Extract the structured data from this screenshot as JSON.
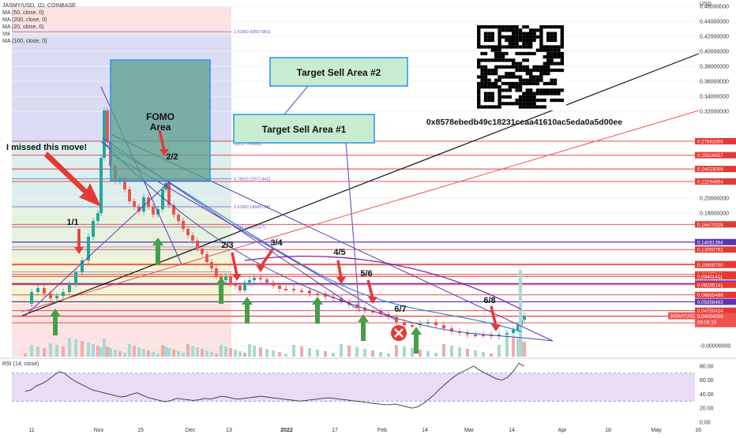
{
  "chart_data": {
    "type": "candlestick",
    "symbol_line": "JASMY/USD, 1D, COINBASE",
    "indicators": [
      "MA (50, close, 0)",
      "MA (200, close, 0)",
      "MA (20, close, 0)",
      "Vol",
      "MA (100, close, 0)"
    ],
    "currency": "USD",
    "ylim": [
      -0.005,
      0.46
    ],
    "yticks": [
      {
        "v": 0.46,
        "label": "0.46000000"
      },
      {
        "v": 0.44,
        "label": "0.44000000"
      },
      {
        "v": 0.42,
        "label": "0.42000000"
      },
      {
        "v": 0.4,
        "label": "0.40000000"
      },
      {
        "v": 0.38,
        "label": "0.38000000"
      },
      {
        "v": 0.36,
        "label": "0.36000000"
      },
      {
        "v": 0.34,
        "label": "0.34000000"
      },
      {
        "v": 0.32,
        "label": "0.32000000"
      },
      {
        "v": 0.2,
        "label": "0.20000000"
      },
      {
        "v": 0.18,
        "label": "0.18000000"
      },
      {
        "v": 0.0,
        "label": "-0.00000000"
      }
    ],
    "price_tags": [
      {
        "v": 0.27863356,
        "label": "0.27863356",
        "color": "#e53935"
      },
      {
        "v": 0.25926657,
        "label": "0.25926657",
        "color": "#e53935"
      },
      {
        "v": 0.24023009,
        "label": "0.24023009",
        "color": "#e53935"
      },
      {
        "v": 0.22294854,
        "label": "0.22294854",
        "color": "#e53935"
      },
      {
        "v": 0.16470328,
        "label": "0.16470328",
        "color": "#e53935"
      },
      {
        "v": 0.14061394,
        "label": "0.14061394",
        "color": "#5e35b1"
      },
      {
        "v": 0.13050792,
        "label": "0.13050792",
        "color": "#e53935"
      },
      {
        "v": 0.11070779,
        "label": "0.11070779",
        "color": "#e53935"
      },
      {
        "v": 0.109587,
        "label": "0.10958700",
        "color": "#e53935"
      },
      {
        "v": 0.09677942,
        "label": "0.09677942",
        "color": "#e53935"
      },
      {
        "v": 0.09401411,
        "label": "0.09401411",
        "color": "#e53935"
      },
      {
        "v": 0.08427914,
        "label": "0.08427914",
        "color": "#5e35b1"
      },
      {
        "v": 0.08265141,
        "label": "0.08265141",
        "color": "#e53935"
      },
      {
        "v": 0.06885498,
        "label": "0.06885498",
        "color": "#e53935"
      },
      {
        "v": 0.05956483,
        "label": "0.05956483",
        "color": "#5e35b1"
      },
      {
        "v": 0.04750424,
        "label": "0.04750424",
        "color": "#e53935"
      },
      {
        "v": 0.04004,
        "label": "0.04004000",
        "color": "#e53935"
      },
      {
        "v": 0.03998118,
        "label": "0.03998118",
        "color": "#e53935"
      },
      {
        "v": 0.031,
        "label": "0.03100000",
        "color": "#e53935"
      }
    ],
    "current": {
      "symbol": "JASMYUSD",
      "price": "0.04004000",
      "countdown": "09:03:19"
    },
    "fib_levels": [
      {
        "v": 0.42607981,
        "label": "1.618(0.42607981)"
      },
      {
        "v": 0.22671442,
        "label": "0.786(0.22671442)"
      },
      {
        "v": 0.18845795,
        "label": "0.618(0.18845795)"
      },
      {
        "v": 0.161,
        "label": "0.5(0.16118257)"
      },
      {
        "v": 0.134,
        "label": ""
      },
      {
        "v": 0.1,
        "label": ""
      },
      {
        "v": 0.083,
        "label": ""
      }
    ],
    "fib_top_label": "1(0.27745556)",
    "x_labels": [
      "11",
      "Nov",
      "15",
      "Dec",
      "13",
      "2022",
      "17",
      "Feb",
      "14",
      "Mar",
      "14",
      "Apr",
      "18",
      "May",
      "16"
    ],
    "rsi": {
      "label": "RSI (14, close)",
      "ylim": [
        0,
        90
      ],
      "ticks": [
        {
          "v": 80,
          "label": "80.00"
        },
        {
          "v": 60,
          "label": "60.00"
        },
        {
          "v": 40,
          "label": "40.00"
        },
        {
          "v": 20,
          "label": "20.00"
        },
        {
          "v": 0,
          "label": "0.00"
        }
      ],
      "bands": [
        70,
        30
      ],
      "values": [
        44,
        46,
        52,
        55,
        60,
        66,
        72,
        70,
        63,
        58,
        54,
        50,
        46,
        44,
        42,
        40,
        38,
        36,
        37,
        40,
        42,
        38,
        35,
        33,
        31,
        29,
        31,
        34,
        33,
        32,
        31,
        32,
        34,
        33,
        35,
        37,
        36,
        34,
        33,
        34,
        35,
        36,
        37,
        36,
        35,
        34,
        33,
        32,
        31,
        30,
        31,
        32,
        33,
        34,
        35,
        34,
        33,
        32,
        31,
        30,
        29,
        28,
        27,
        26,
        25,
        25,
        26,
        24,
        22,
        20,
        22,
        27,
        33,
        40,
        48,
        55,
        62,
        68,
        72,
        76,
        80,
        74,
        70,
        66,
        62,
        60,
        64,
        72,
        84,
        80
      ]
    },
    "annotations": {
      "boxes": [
        "FOMO\nArea",
        "Target Sell Area #2",
        "Target Sell Area #1"
      ],
      "labels": [
        "I missed this move!",
        "1/1",
        "2/2",
        "2/3",
        "3/4",
        "4/5",
        "5/6",
        "6/7",
        "6/8"
      ],
      "address": "0x8578ebedb49c18231ccaa41610ac5eda0a5d00ee"
    }
  }
}
